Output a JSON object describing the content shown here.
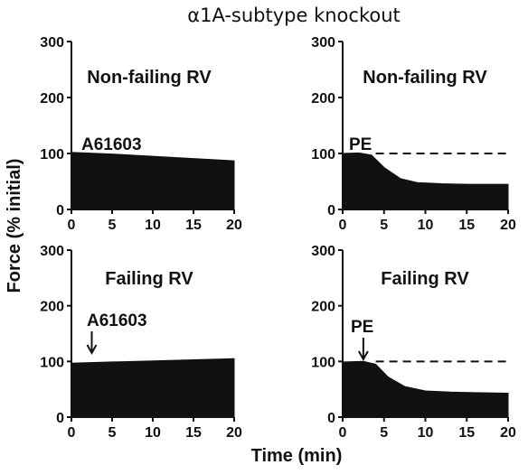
{
  "figure": {
    "title": "α1A-subtype knockout",
    "ylabel": "Force (% initial)",
    "xlabel": "Time (min)"
  },
  "chart_data": [
    {
      "type": "area",
      "panel": "top-left",
      "title": "Non-failing RV",
      "annotation": {
        "label": "A61603",
        "x": 3
      },
      "dashed_reference": null,
      "xlim": [
        0,
        20
      ],
      "ylim": [
        0,
        300
      ],
      "xticks": [
        0,
        5,
        10,
        15,
        20
      ],
      "yticks": [
        0,
        100,
        200,
        300
      ],
      "series": [
        {
          "x": [
            0,
            5,
            10,
            15,
            20
          ],
          "values": [
            102,
            99,
            95,
            91,
            87
          ]
        }
      ]
    },
    {
      "type": "area",
      "panel": "top-right",
      "title": "Non-failing RV",
      "annotation": {
        "label": "PE",
        "x": 2
      },
      "dashed_reference": 100,
      "xlim": [
        0,
        20
      ],
      "ylim": [
        0,
        300
      ],
      "xticks": [
        0,
        5,
        10,
        15,
        20
      ],
      "yticks": [
        0,
        100,
        200,
        300
      ],
      "series": [
        {
          "x": [
            0,
            2,
            3.5,
            5,
            7,
            9,
            12,
            15,
            20
          ],
          "values": [
            100,
            101,
            97,
            75,
            55,
            48,
            46,
            45,
            45
          ]
        }
      ]
    },
    {
      "type": "area",
      "panel": "bottom-left",
      "title": "Failing RV",
      "annotation": {
        "label": "A61603",
        "x": 2.5
      },
      "dashed_reference": null,
      "xlim": [
        0,
        20
      ],
      "ylim": [
        0,
        300
      ],
      "xticks": [
        0,
        5,
        10,
        15,
        20
      ],
      "yticks": [
        0,
        100,
        200,
        300
      ],
      "series": [
        {
          "x": [
            0,
            5,
            10,
            15,
            20
          ],
          "values": [
            97,
            99,
            101,
            103,
            105
          ]
        }
      ]
    },
    {
      "type": "area",
      "panel": "bottom-right",
      "title": "Failing RV",
      "annotation": {
        "label": "PE",
        "x": 2.5
      },
      "dashed_reference": 100,
      "xlim": [
        0,
        20
      ],
      "ylim": [
        0,
        300
      ],
      "xticks": [
        0,
        5,
        10,
        15,
        20
      ],
      "yticks": [
        0,
        100,
        200,
        300
      ],
      "series": [
        {
          "x": [
            0,
            2.5,
            4,
            5.5,
            7.5,
            10,
            13,
            16,
            20
          ],
          "values": [
            99,
            100,
            95,
            72,
            55,
            47,
            45,
            44,
            43
          ]
        }
      ]
    }
  ]
}
